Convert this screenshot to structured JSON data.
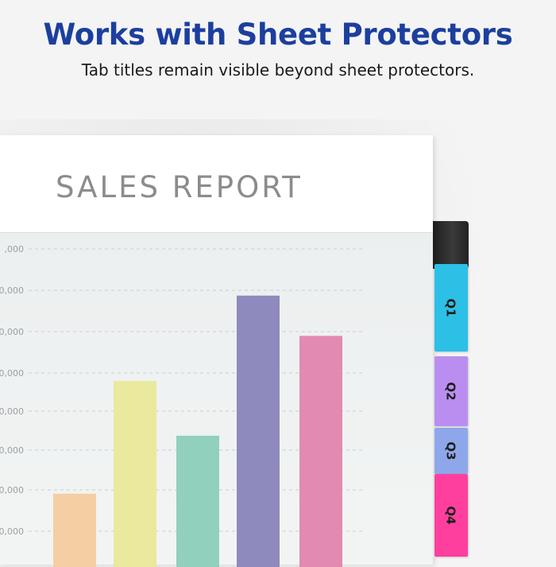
{
  "banner": {
    "headline": "Works with Sheet Protectors",
    "subline": "Tab titles remain visible beyond sheet protectors."
  },
  "sheet": {
    "title": "SALES REPORT"
  },
  "tabs": [
    {
      "label": "Q1",
      "color": "#2cc0e6"
    },
    {
      "label": "Q2",
      "color": "#b98ef0"
    },
    {
      "label": "Q3",
      "color": "#8ea7ea"
    },
    {
      "label": "Q4",
      "color": "#ff3f9e"
    }
  ],
  "chart_data": {
    "type": "bar",
    "ytick_labels": [
      ",000",
      "0,000",
      "0,000",
      "0,000",
      "0,000",
      "0,000",
      "0,000",
      "0,000"
    ],
    "values": [
      96,
      236,
      168,
      342,
      292
    ],
    "colors": [
      "#f5cfa3",
      "#eae99e",
      "#91d0bd",
      "#8e8abd",
      "#e28ab0"
    ],
    "ylim": [
      0,
      400
    ]
  }
}
